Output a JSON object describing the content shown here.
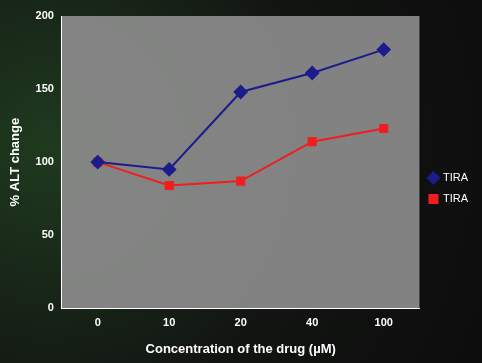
{
  "chart_data": {
    "type": "line",
    "x_label": "Concentration of the drug (µM)",
    "y_label": "% ALT change",
    "categories": [
      "0",
      "10",
      "20",
      "40",
      "100"
    ],
    "series": [
      {
        "name": "TIRA",
        "color": "#1c1c8c",
        "marker": "diamond",
        "values": [
          100,
          95,
          148,
          161,
          177
        ]
      },
      {
        "name": "TIRA",
        "color": "#f01e1e",
        "marker": "square",
        "values": [
          100,
          84,
          87,
          114,
          123
        ]
      }
    ],
    "ylim": [
      0,
      200
    ],
    "yticks": [
      0,
      50,
      100,
      150,
      200
    ],
    "grid": false,
    "legend": "right"
  }
}
